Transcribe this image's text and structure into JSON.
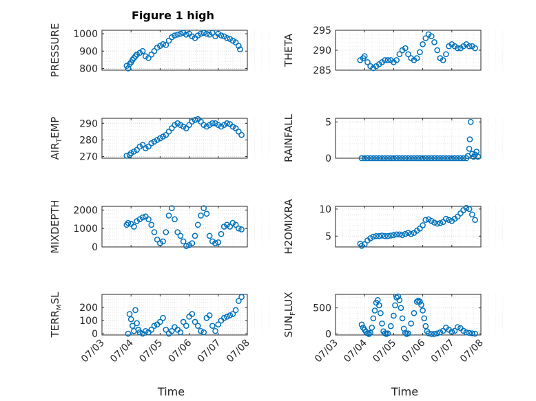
{
  "figure_title": "Figure 1 high",
  "colors": {
    "marker": "#0072bd",
    "grid": "#d9d9d9",
    "axis": "#262626"
  },
  "chart_data": [
    {
      "type": "scatter",
      "title": "Figure 1 high",
      "ylabel": "PRESSURE",
      "ylim": [
        790,
        1020
      ],
      "yticks": [
        800,
        900,
        1000
      ],
      "xlabel": "",
      "xticks": [],
      "xlim": [
        0,
        5
      ],
      "grid": true,
      "x": [
        0.85,
        0.9,
        0.95,
        1.0,
        1.05,
        1.1,
        1.15,
        1.2,
        1.3,
        1.4,
        1.5,
        1.6,
        1.7,
        1.8,
        1.9,
        2.0,
        2.1,
        2.2,
        2.3,
        2.4,
        2.5,
        2.6,
        2.7,
        2.8,
        2.9,
        3.0,
        3.1,
        3.2,
        3.3,
        3.4,
        3.5,
        3.6,
        3.7,
        3.8,
        3.9,
        4.0,
        4.1,
        4.2,
        4.3,
        4.4,
        4.5,
        4.6,
        4.7,
        4.75
      ],
      "y": [
        815,
        800,
        825,
        835,
        850,
        860,
        870,
        880,
        890,
        900,
        870,
        860,
        880,
        900,
        920,
        930,
        940,
        935,
        960,
        980,
        990,
        995,
        1000,
        1005,
        995,
        1000,
        985,
        975,
        990,
        1000,
        1005,
        1000,
        995,
        1005,
        985,
        1000,
        990,
        985,
        975,
        970,
        960,
        950,
        930,
        910
      ]
    },
    {
      "type": "scatter",
      "title": "",
      "ylabel": "THETA",
      "ylim": [
        285,
        295
      ],
      "yticks": [
        285,
        290,
        295
      ],
      "xlabel": "",
      "xticks": [],
      "xlim": [
        0,
        5
      ],
      "grid": true,
      "x": [
        0.85,
        0.95,
        1.0,
        1.1,
        1.2,
        1.3,
        1.4,
        1.5,
        1.6,
        1.7,
        1.8,
        1.9,
        2.0,
        2.1,
        2.2,
        2.3,
        2.4,
        2.5,
        2.6,
        2.7,
        2.8,
        2.9,
        3.0,
        3.1,
        3.2,
        3.3,
        3.4,
        3.5,
        3.6,
        3.7,
        3.8,
        3.9,
        4.0,
        4.1,
        4.2,
        4.3,
        4.4,
        4.5,
        4.6,
        4.7,
        4.8
      ],
      "y": [
        287.5,
        288,
        288.5,
        287,
        286,
        285.5,
        286,
        286.5,
        287,
        287.5,
        287.5,
        287.5,
        287,
        287.5,
        289,
        290,
        290.5,
        289,
        288,
        287.5,
        288,
        289.5,
        291.5,
        293,
        294,
        293.5,
        292,
        290,
        288,
        287.5,
        289,
        291,
        291.5,
        291,
        290.5,
        290.5,
        291,
        291.5,
        291,
        291,
        290.5
      ]
    },
    {
      "type": "scatter",
      "title": "",
      "ylabel": "AIR_TEMP",
      "ylabel_main": "AIR",
      "ylabel_sub": "T",
      "ylabel_tail": "EMP",
      "ylim": [
        269,
        293
      ],
      "yticks": [
        270,
        280,
        290
      ],
      "xlabel": "",
      "xticks": [],
      "xlim": [
        0,
        5
      ],
      "grid": true,
      "x": [
        0.85,
        0.95,
        1.0,
        1.1,
        1.2,
        1.3,
        1.4,
        1.5,
        1.6,
        1.7,
        1.8,
        1.9,
        2.0,
        2.1,
        2.2,
        2.3,
        2.4,
        2.5,
        2.6,
        2.7,
        2.8,
        2.9,
        3.0,
        3.1,
        3.2,
        3.3,
        3.4,
        3.5,
        3.6,
        3.7,
        3.8,
        3.9,
        4.0,
        4.1,
        4.2,
        4.3,
        4.4,
        4.5,
        4.6,
        4.7,
        4.8
      ],
      "y": [
        270.5,
        271,
        272,
        273,
        274,
        276,
        277,
        275,
        276,
        278,
        279,
        280,
        281,
        282,
        283,
        285,
        287,
        289,
        290,
        289,
        288,
        287,
        289,
        291,
        292,
        292.5,
        291,
        289,
        288,
        289,
        290,
        290,
        289,
        288,
        289,
        290,
        289.5,
        288,
        287,
        285,
        283
      ]
    },
    {
      "type": "scatter",
      "title": "",
      "ylabel": "RAINFALL",
      "ylim": [
        0,
        5.5
      ],
      "yticks": [
        0,
        5
      ],
      "xlabel": "",
      "xticks": [],
      "xlim": [
        0,
        5
      ],
      "grid": true,
      "x": [
        0.9,
        1.0,
        1.1,
        1.2,
        1.3,
        1.4,
        1.5,
        1.6,
        1.7,
        1.8,
        1.9,
        2.0,
        2.1,
        2.2,
        2.3,
        2.4,
        2.5,
        2.6,
        2.7,
        2.8,
        2.9,
        3.0,
        3.1,
        3.2,
        3.3,
        3.4,
        3.5,
        3.6,
        3.7,
        3.8,
        3.9,
        4.0,
        4.1,
        4.2,
        4.3,
        4.4,
        4.5,
        4.55,
        4.6,
        4.62,
        4.65,
        4.7,
        4.75,
        4.8,
        4.85,
        4.9
      ],
      "y": [
        0,
        0,
        0,
        0,
        0,
        0,
        0,
        0,
        0,
        0,
        0,
        0,
        0,
        0,
        0,
        0,
        0,
        0,
        0,
        0,
        0,
        0,
        0,
        0,
        0,
        0,
        0,
        0,
        0,
        0,
        0,
        0,
        0,
        0,
        0,
        0,
        0,
        0.3,
        1.3,
        2.6,
        5,
        0.6,
        0.2,
        0.5,
        0.9,
        0.2
      ]
    },
    {
      "type": "scatter",
      "title": "",
      "ylabel": "MIXDEPTH",
      "ylim": [
        0,
        2200
      ],
      "yticks": [
        0,
        1000,
        2000
      ],
      "xlabel": "",
      "xticks": [],
      "xlim": [
        0,
        5
      ],
      "grid": true,
      "x": [
        0.85,
        0.9,
        1.0,
        1.1,
        1.2,
        1.3,
        1.4,
        1.5,
        1.6,
        1.7,
        1.8,
        1.9,
        2.0,
        2.1,
        2.2,
        2.3,
        2.4,
        2.5,
        2.6,
        2.7,
        2.8,
        2.9,
        3.0,
        3.1,
        3.2,
        3.3,
        3.4,
        3.5,
        3.6,
        3.7,
        3.8,
        3.9,
        4.0,
        4.1,
        4.2,
        4.3,
        4.4,
        4.5,
        4.6,
        4.7,
        4.8
      ],
      "y": [
        1200,
        1300,
        1250,
        1100,
        1400,
        1500,
        1600,
        1650,
        1500,
        1200,
        800,
        400,
        200,
        300,
        800,
        1700,
        2100,
        1500,
        800,
        600,
        300,
        50,
        100,
        200,
        600,
        1200,
        1700,
        2100,
        1800,
        600,
        300,
        200,
        250,
        700,
        1100,
        1200,
        1100,
        1300,
        1200,
        1000,
        950
      ]
    },
    {
      "type": "scatter",
      "title": "",
      "ylabel": "H2OMIXRA",
      "ylim": [
        3,
        10.5
      ],
      "yticks": [
        5,
        10
      ],
      "xlabel": "",
      "xticks": [],
      "xlim": [
        0,
        5
      ],
      "grid": true,
      "x": [
        0.85,
        0.9,
        1.0,
        1.1,
        1.2,
        1.3,
        1.4,
        1.5,
        1.6,
        1.7,
        1.8,
        1.9,
        2.0,
        2.1,
        2.2,
        2.3,
        2.4,
        2.5,
        2.6,
        2.7,
        2.8,
        2.9,
        3.0,
        3.1,
        3.2,
        3.3,
        3.4,
        3.5,
        3.6,
        3.7,
        3.8,
        3.9,
        4.0,
        4.1,
        4.2,
        4.3,
        4.4,
        4.5,
        4.6,
        4.7,
        4.8
      ],
      "y": [
        3.6,
        3.2,
        3.5,
        4.2,
        4.6,
        4.9,
        5.0,
        5.0,
        5.1,
        5.0,
        5.0,
        5.1,
        5.2,
        5.3,
        5.3,
        5.2,
        5.4,
        5.6,
        5.4,
        5.6,
        6.0,
        6.4,
        7.0,
        8.0,
        8.1,
        7.8,
        7.5,
        7.3,
        7.4,
        7.6,
        8.2,
        8.0,
        7.8,
        8.2,
        8.6,
        9.2,
        9.8,
        10.2,
        10.0,
        9.0,
        8.0
      ]
    },
    {
      "type": "scatter",
      "title": "",
      "ylabel": "TERR_MSL",
      "ylabel_main": "TERR",
      "ylabel_sub": "M",
      "ylabel_tail": "SL",
      "ylim": [
        -10,
        300
      ],
      "yticks": [
        0,
        100,
        200
      ],
      "xlabel": "Time",
      "xticks": [
        "07/03",
        "07/04",
        "07/05",
        "07/06",
        "07/07",
        "07/08"
      ],
      "xlim": [
        0,
        5
      ],
      "grid": true,
      "x": [
        0.9,
        0.95,
        1.0,
        1.05,
        1.1,
        1.15,
        1.2,
        1.25,
        1.3,
        1.4,
        1.5,
        1.6,
        1.7,
        1.8,
        1.9,
        2.0,
        2.1,
        2.2,
        2.3,
        2.4,
        2.5,
        2.6,
        2.7,
        2.8,
        2.9,
        3.0,
        3.1,
        3.2,
        3.3,
        3.4,
        3.5,
        3.6,
        3.7,
        3.8,
        3.9,
        4.0,
        4.1,
        4.2,
        4.3,
        4.4,
        4.5,
        4.6,
        4.7,
        4.8
      ],
      "y": [
        0,
        150,
        110,
        60,
        20,
        180,
        80,
        30,
        10,
        0,
        20,
        10,
        30,
        60,
        70,
        90,
        120,
        30,
        0,
        20,
        50,
        30,
        10,
        90,
        60,
        130,
        150,
        90,
        60,
        20,
        10,
        120,
        140,
        60,
        20,
        70,
        100,
        120,
        130,
        140,
        150,
        180,
        250,
        280
      ]
    },
    {
      "type": "scatter",
      "title": "",
      "ylabel": "SUN_FLUX",
      "ylabel_main": "SUN",
      "ylabel_sub": "F",
      "ylabel_tail": "LUX",
      "ylim": [
        -20,
        760
      ],
      "yticks": [
        0,
        500
      ],
      "xlabel": "Time",
      "xticks": [
        "07/03",
        "07/04",
        "07/05",
        "07/06",
        "07/07",
        "07/08"
      ],
      "xlim": [
        0,
        5
      ],
      "grid": true,
      "x": [
        0.9,
        0.95,
        1.0,
        1.05,
        1.1,
        1.15,
        1.2,
        1.25,
        1.3,
        1.35,
        1.4,
        1.45,
        1.5,
        1.55,
        1.6,
        1.65,
        1.7,
        1.75,
        1.8,
        1.9,
        2.0,
        2.05,
        2.1,
        2.15,
        2.2,
        2.25,
        2.3,
        2.35,
        2.4,
        2.45,
        2.5,
        2.6,
        2.7,
        2.8,
        2.85,
        2.9,
        2.95,
        3.0,
        3.05,
        3.1,
        3.15,
        3.2,
        3.3,
        3.4,
        3.5,
        3.6,
        3.7,
        3.8,
        3.9,
        4.0,
        4.1,
        4.2,
        4.3,
        4.4,
        4.5,
        4.6,
        4.7,
        4.8
      ],
      "y": [
        180,
        120,
        80,
        40,
        10,
        0,
        20,
        120,
        300,
        450,
        600,
        650,
        550,
        400,
        200,
        50,
        10,
        0,
        10,
        150,
        350,
        550,
        700,
        720,
        650,
        500,
        300,
        100,
        20,
        0,
        10,
        200,
        400,
        620,
        640,
        620,
        560,
        450,
        300,
        150,
        50,
        10,
        0,
        0,
        10,
        30,
        60,
        120,
        80,
        40,
        60,
        130,
        110,
        60,
        30,
        20,
        10,
        5
      ]
    }
  ]
}
